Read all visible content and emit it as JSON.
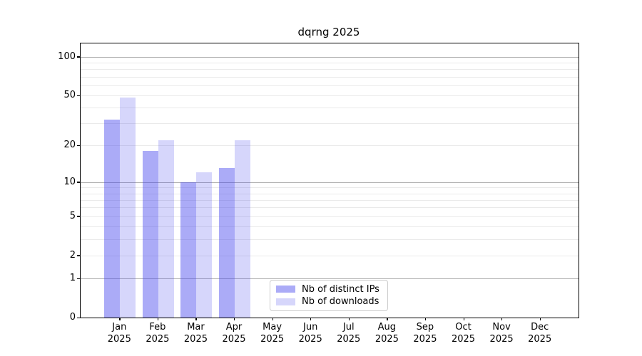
{
  "title": "dqrng 2025",
  "chart_data": {
    "type": "bar",
    "title": "dqrng 2025",
    "year": "2025",
    "months": [
      "Jan",
      "Feb",
      "Mar",
      "Apr",
      "May",
      "Jun",
      "Jul",
      "Aug",
      "Sep",
      "Oct",
      "Nov",
      "Dec"
    ],
    "series": [
      {
        "name": "Nb of distinct IPs",
        "color": "rgba(68,68,238,0.45)",
        "values": [
          32,
          18,
          10,
          13,
          null,
          null,
          null,
          null,
          null,
          null,
          null,
          null
        ]
      },
      {
        "name": "Nb of downloads",
        "color": "rgba(68,68,238,0.22)",
        "values": [
          48,
          22,
          12,
          22,
          null,
          null,
          null,
          null,
          null,
          null,
          null,
          null
        ]
      }
    ],
    "yscale": "log1p",
    "ylim": [
      0,
      127
    ],
    "yticks": [
      0,
      1,
      2,
      5,
      10,
      20,
      50,
      100
    ],
    "gridlines": {
      "major": [
        1,
        10,
        100
      ],
      "minor": [
        2,
        3,
        4,
        5,
        6,
        7,
        8,
        9,
        20,
        30,
        40,
        50,
        60,
        70,
        80,
        90
      ],
      "major_color": "#b0b0b0",
      "minor_color": "#eaeaea"
    },
    "legend_position": "bottom, left of center inside plot",
    "axis_color": "#000000",
    "background_color": "#ffffff"
  }
}
